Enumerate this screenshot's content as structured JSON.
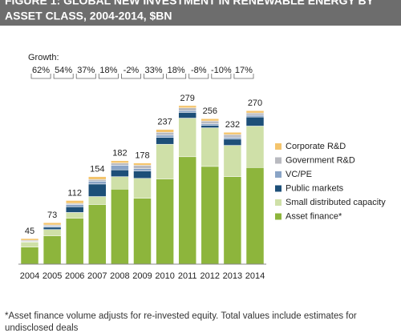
{
  "chart_data": {
    "type": "stacked-bar",
    "title": [
      "FIGURE 1: GLOBAL NEW INVESTMENT IN RENEWABLE ENERGY BY",
      "ASSET CLASS, 2004-2014, $BN"
    ],
    "categories": [
      "2004",
      "2005",
      "2006",
      "2007",
      "2008",
      "2009",
      "2010",
      "2011",
      "2012",
      "2013",
      "2014"
    ],
    "series": [
      {
        "name": "Asset finance*",
        "color": "#8db53c",
        "values": [
          30,
          50,
          81,
          105,
          132,
          116,
          150,
          189,
          172,
          154,
          170
        ]
      },
      {
        "name": "Small distributed capacity",
        "color": "#cfe0a8",
        "values": [
          9,
          11,
          10,
          14,
          22,
          35,
          61,
          68,
          68,
          55,
          73
        ]
      },
      {
        "name": "Public markets",
        "color": "#1d4f78",
        "values": [
          0.5,
          4,
          10,
          22,
          12,
          13,
          12,
          10,
          4,
          11,
          16
        ]
      },
      {
        "name": "VC/PE",
        "color": "#8aa4c6",
        "values": [
          0.5,
          2,
          4,
          5,
          8,
          4,
          4,
          3,
          3,
          3,
          3
        ]
      },
      {
        "name": "Government R&D",
        "color": "#b9bac0",
        "values": [
          2,
          2,
          2,
          3,
          4,
          6,
          5,
          5,
          5,
          5,
          4
        ]
      },
      {
        "name": "Corporate R&D",
        "color": "#f4c46c",
        "values": [
          3,
          4,
          5,
          5,
          4,
          4,
          5,
          4,
          4,
          4,
          4
        ]
      }
    ],
    "totals": [
      45,
      73,
      112,
      154,
      182,
      178,
      237,
      279,
      256,
      232,
      270
    ],
    "ylim": [
      0,
      300
    ],
    "growth": {
      "title": "Growth:",
      "values": [
        62,
        54,
        37,
        18,
        -2,
        33,
        18,
        -8,
        -10,
        17
      ],
      "value_labels": [
        "62%",
        "54%",
        "37%",
        "18%",
        "-2%",
        "33%",
        "18%",
        "-8%",
        "-10%",
        "17%"
      ]
    },
    "footnote": [
      "*Asset finance volume adjusts for re-invested equity.  Total values include estimates for",
      "undisclosed deals"
    ]
  }
}
